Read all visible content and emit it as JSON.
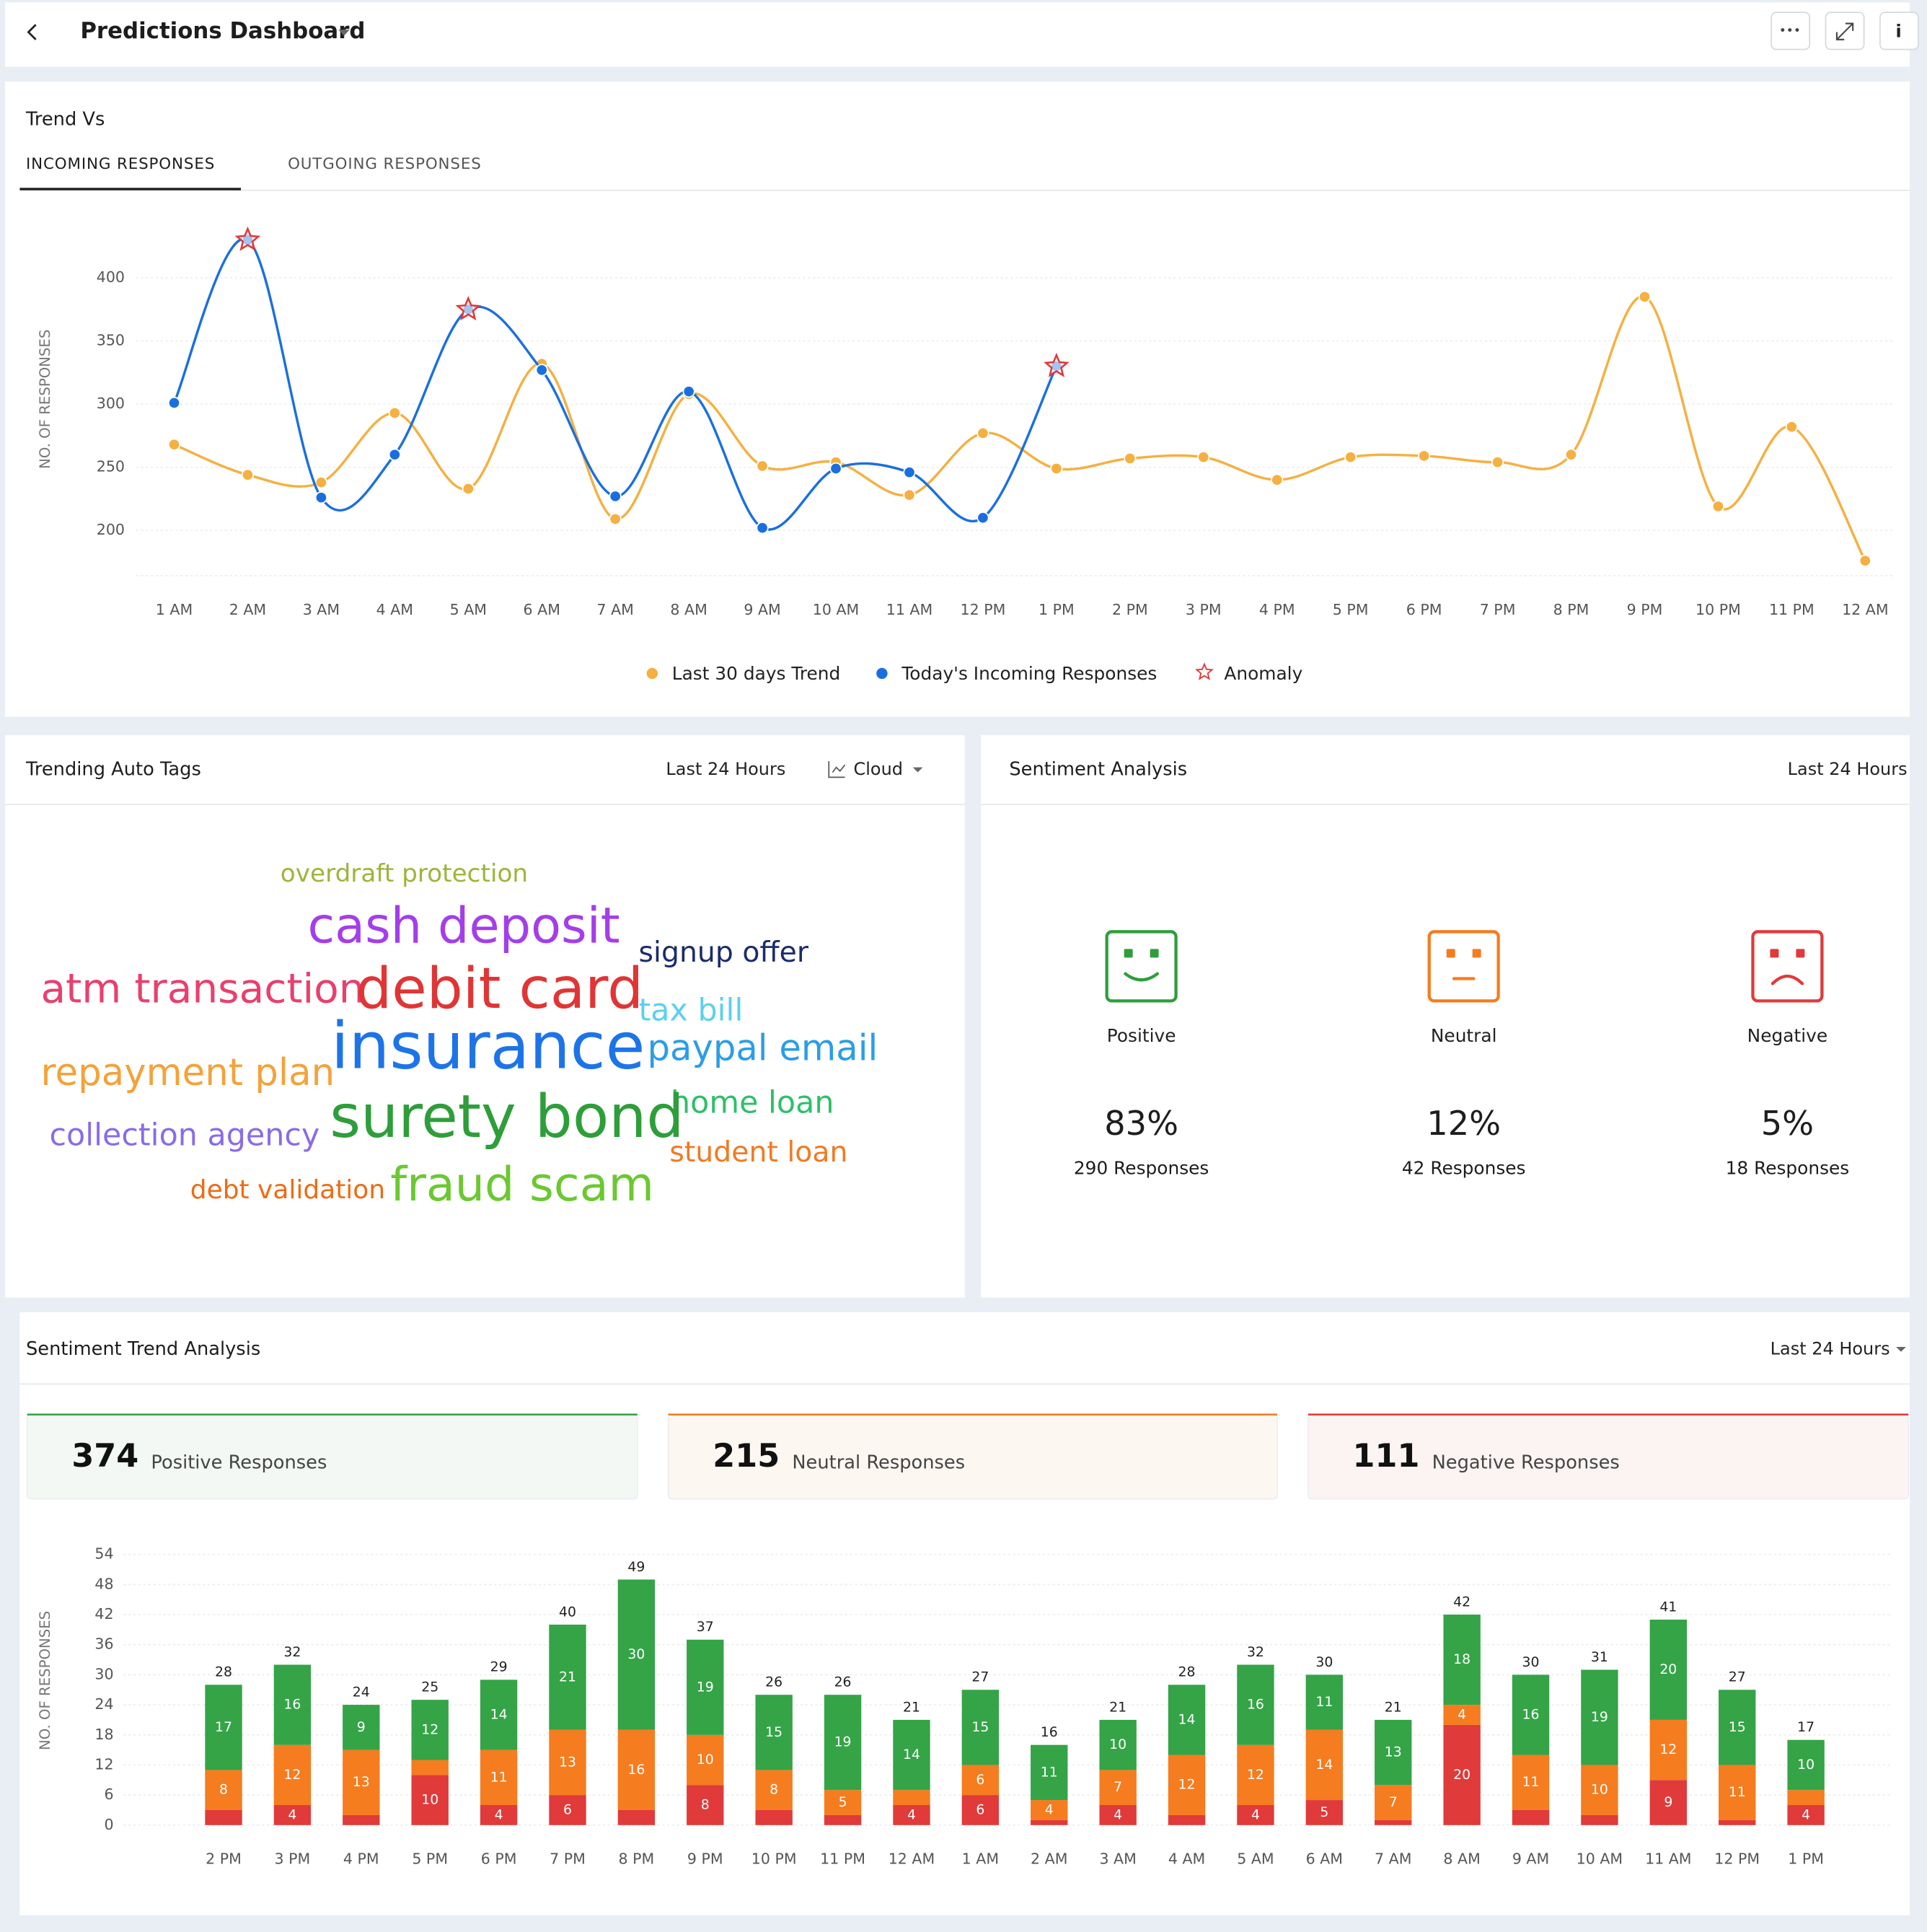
{
  "header": {
    "title": "Predictions Dashboard"
  },
  "chart_data": [
    {
      "type": "line",
      "title": "Trend Vs",
      "tabs": [
        "INCOMING RESPONSES",
        "OUTGOING RESPONSES"
      ],
      "y_label": "NO. OF RESPONSES",
      "categories": [
        "1 AM",
        "2 AM",
        "3 AM",
        "4 AM",
        "5 AM",
        "6 AM",
        "7 AM",
        "8 AM",
        "9 AM",
        "10 AM",
        "11 AM",
        "12 PM",
        "1 PM",
        "2 PM",
        "3 PM",
        "4 PM",
        "5 PM",
        "6 PM",
        "7 PM",
        "8 PM",
        "9 PM",
        "10 PM",
        "11 PM",
        "12 AM"
      ],
      "series": [
        {
          "name": "Last 30 days Trend",
          "color": "#f5b041",
          "marker": "dot",
          "values": [
            268,
            244,
            238,
            293,
            233,
            332,
            209,
            308,
            251,
            254,
            228,
            277,
            249,
            257,
            258,
            240,
            258,
            259,
            254,
            260,
            385,
            219,
            282,
            176
          ]
        },
        {
          "name": "Today's Incoming Responses",
          "color": "#1a6fe0",
          "marker": "dot",
          "values": [
            301,
            430,
            226,
            260,
            375,
            327,
            227,
            310,
            202,
            249,
            246,
            210,
            330,
            null,
            null,
            null,
            null,
            null,
            null,
            null,
            null,
            null,
            null,
            null
          ]
        },
        {
          "name": "Anomaly",
          "color": "#e03a3a",
          "marker": "star",
          "values": [
            null,
            430,
            null,
            null,
            375,
            null,
            null,
            null,
            null,
            null,
            null,
            null,
            330,
            null,
            null,
            null,
            null,
            null,
            null,
            null,
            null,
            null,
            null,
            null
          ]
        }
      ],
      "ylim": [
        165,
        440
      ],
      "yticks": [
        200,
        250,
        300,
        350,
        400
      ],
      "grid": true
    },
    {
      "type": "stacked_bar",
      "title": "Sentiment Trend Analysis",
      "period": "Last 24 Hours",
      "y_label": "NO. OF RESPONSES",
      "categories": [
        "2 PM",
        "3 PM",
        "4 PM",
        "5 PM",
        "6 PM",
        "7 PM",
        "8 PM",
        "9 PM",
        "10 PM",
        "11 PM",
        "12 AM",
        "1 AM",
        "2 AM",
        "3 AM",
        "4 AM",
        "5 AM",
        "6 AM",
        "7 AM",
        "8 AM",
        "9 AM",
        "10 AM",
        "11 AM",
        "12 PM",
        "1 PM"
      ],
      "series": [
        {
          "name": "Negative",
          "color": "#e03a3a",
          "values": [
            3,
            4,
            2,
            10,
            4,
            6,
            3,
            8,
            3,
            2,
            4,
            6,
            1,
            4,
            2,
            4,
            5,
            1,
            20,
            3,
            2,
            9,
            1,
            4
          ]
        },
        {
          "name": "Neutral",
          "color": "#f57c1f",
          "values": [
            8,
            12,
            13,
            3,
            11,
            13,
            16,
            10,
            8,
            5,
            3,
            6,
            4,
            7,
            12,
            12,
            14,
            7,
            4,
            11,
            10,
            12,
            11,
            3
          ]
        },
        {
          "name": "Positive",
          "color": "#34a447",
          "values": [
            17,
            16,
            9,
            12,
            14,
            21,
            30,
            19,
            15,
            19,
            14,
            15,
            11,
            10,
            14,
            16,
            11,
            13,
            18,
            16,
            19,
            20,
            15,
            10
          ]
        }
      ],
      "totals": [
        28,
        32,
        24,
        25,
        29,
        40,
        49,
        37,
        26,
        26,
        21,
        27,
        16,
        21,
        28,
        32,
        30,
        21,
        42,
        30,
        31,
        41,
        27,
        17
      ],
      "ylim": [
        0,
        54
      ],
      "yticks": [
        0,
        6,
        12,
        18,
        24,
        30,
        36,
        42,
        48,
        54
      ],
      "grid": true
    }
  ],
  "tags": {
    "title": "Trending Auto Tags",
    "period": "Last 24 Hours",
    "view": "Cloud",
    "words": [
      {
        "text": "overdraft protection",
        "color": "#9cb53a"
      },
      {
        "text": "cash deposit",
        "color": "#a43ee8"
      },
      {
        "text": "signup offer",
        "color": "#1b2c6b"
      },
      {
        "text": "atm transaction",
        "color": "#e8406e"
      },
      {
        "text": "debit card",
        "color": "#e03535"
      },
      {
        "text": "tax bill",
        "color": "#5bd0ef"
      },
      {
        "text": "insurance",
        "color": "#1d74e8"
      },
      {
        "text": "paypal email",
        "color": "#2b9de8"
      },
      {
        "text": "repayment plan",
        "color": "#f4a23a"
      },
      {
        "text": "home loan",
        "color": "#2fbf6a"
      },
      {
        "text": "surety bond",
        "color": "#2e9e3a"
      },
      {
        "text": "collection agency",
        "color": "#8a6be8"
      },
      {
        "text": "student loan",
        "color": "#f07a22"
      },
      {
        "text": "debt validation",
        "color": "#f06a12"
      },
      {
        "text": "fraud scam",
        "color": "#6cc832"
      }
    ]
  },
  "sentiment": {
    "title": "Sentiment Analysis",
    "period": "Last 24 Hours",
    "items": [
      {
        "label": "Positive",
        "percent": "83%",
        "responses": "290 Responses",
        "color": "#2e9e3a"
      },
      {
        "label": "Neutral",
        "percent": "12%",
        "responses": "42 Responses",
        "color": "#f57c1f"
      },
      {
        "label": "Negative",
        "percent": "5%",
        "responses": "18 Responses",
        "color": "#e03a3a"
      }
    ]
  },
  "summary": [
    {
      "value": 374,
      "label": "Positive Responses",
      "color": "#34a447",
      "bg": "#f4f8f4"
    },
    {
      "value": 215,
      "label": "Neutral Responses",
      "color": "#f57c1f",
      "bg": "#fdf7f2"
    },
    {
      "value": 111,
      "label": "Negative Responses",
      "color": "#e03a3a",
      "bg": "#fcf3f3"
    }
  ]
}
